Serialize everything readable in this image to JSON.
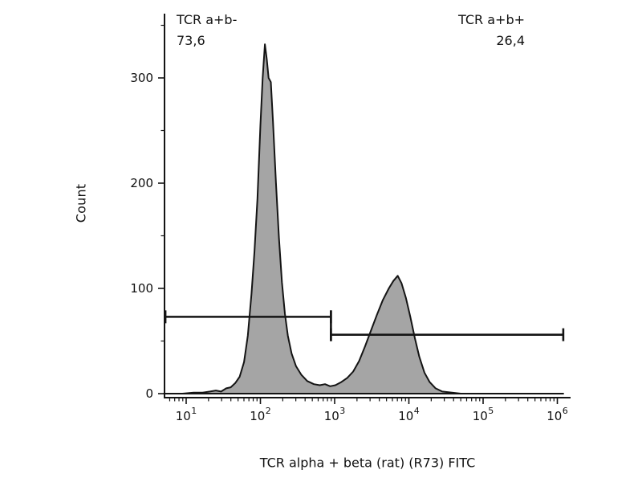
{
  "chart_data": {
    "type": "area",
    "title": "",
    "xlabel": "TCR alpha + beta (rat) (R73) FITC",
    "ylabel": "Count",
    "x_scale": "log10",
    "x_tick_base": "10",
    "x_tick_exponents": [
      1,
      2,
      3,
      4,
      5,
      6
    ],
    "y_ticks": [
      0,
      100,
      200,
      300
    ],
    "y_minor_ticks": [
      50,
      150,
      250,
      350
    ],
    "xlim_log": [
      0.7,
      6.08
    ],
    "ylim": [
      0,
      360
    ],
    "grid": false,
    "legend": null,
    "fill_color": "#a5a5a5",
    "stroke_color": "#141414",
    "curve": [
      [
        0.7,
        0
      ],
      [
        0.95,
        0
      ],
      [
        1.1,
        1
      ],
      [
        1.22,
        1
      ],
      [
        1.32,
        2
      ],
      [
        1.4,
        3
      ],
      [
        1.47,
        2
      ],
      [
        1.54,
        5
      ],
      [
        1.6,
        6
      ],
      [
        1.66,
        10
      ],
      [
        1.72,
        16
      ],
      [
        1.78,
        30
      ],
      [
        1.83,
        55
      ],
      [
        1.88,
        95
      ],
      [
        1.92,
        135
      ],
      [
        1.96,
        185
      ],
      [
        2.0,
        255
      ],
      [
        2.03,
        300
      ],
      [
        2.06,
        332
      ],
      [
        2.085,
        318
      ],
      [
        2.11,
        300
      ],
      [
        2.14,
        296
      ],
      [
        2.17,
        258
      ],
      [
        2.21,
        200
      ],
      [
        2.25,
        148
      ],
      [
        2.29,
        106
      ],
      [
        2.33,
        76
      ],
      [
        2.37,
        55
      ],
      [
        2.42,
        38
      ],
      [
        2.48,
        26
      ],
      [
        2.55,
        18
      ],
      [
        2.63,
        12
      ],
      [
        2.72,
        9
      ],
      [
        2.8,
        8
      ],
      [
        2.87,
        9
      ],
      [
        2.94,
        7
      ],
      [
        3.01,
        8
      ],
      [
        3.09,
        11
      ],
      [
        3.17,
        15
      ],
      [
        3.25,
        21
      ],
      [
        3.33,
        31
      ],
      [
        3.41,
        45
      ],
      [
        3.49,
        60
      ],
      [
        3.57,
        75
      ],
      [
        3.65,
        89
      ],
      [
        3.73,
        100
      ],
      [
        3.79,
        107
      ],
      [
        3.85,
        112
      ],
      [
        3.9,
        105
      ],
      [
        3.96,
        91
      ],
      [
        4.02,
        73
      ],
      [
        4.08,
        53
      ],
      [
        4.14,
        35
      ],
      [
        4.21,
        20
      ],
      [
        4.28,
        11
      ],
      [
        4.36,
        5
      ],
      [
        4.45,
        2
      ],
      [
        4.58,
        1
      ],
      [
        4.7,
        0
      ],
      [
        5.2,
        0
      ],
      [
        6.08,
        0
      ]
    ],
    "gates": [
      {
        "label": "TCR a+b-",
        "value": "73,6",
        "from_log": 0.72,
        "to_log": 2.95,
        "count_level": 73
      },
      {
        "label": "TCR a+b+",
        "value": "26,4",
        "from_log": 2.95,
        "to_log": 6.08,
        "count_level": 56
      }
    ]
  }
}
